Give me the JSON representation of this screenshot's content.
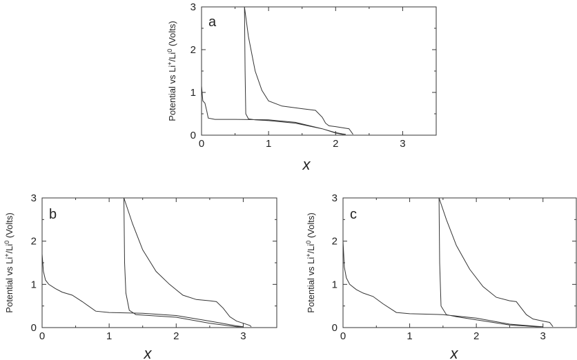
{
  "chart_data": [
    {
      "type": "line",
      "panel_label": "a",
      "xlabel": "x",
      "ylabel": "Potential vs Li+/Li0  (Volts)",
      "xlim": [
        0,
        3.5
      ],
      "ylim": [
        0,
        3
      ],
      "x_ticks": [
        "0",
        "1",
        "2",
        "3"
      ],
      "y_ticks": [
        "0",
        "1",
        "2",
        "3"
      ],
      "grid": false,
      "series": [
        {
          "points": [
            [
              0.0,
              1.15
            ],
            [
              0.02,
              0.8
            ],
            [
              0.05,
              0.75
            ],
            [
              0.08,
              0.55
            ],
            [
              0.1,
              0.4
            ],
            [
              0.2,
              0.37
            ],
            [
              0.5,
              0.37
            ],
            [
              1.0,
              0.36
            ],
            [
              1.4,
              0.3
            ],
            [
              1.8,
              0.15
            ],
            [
              2.0,
              0.06
            ],
            [
              2.1,
              0.03
            ],
            [
              2.15,
              0.02
            ],
            [
              2.1,
              0.02
            ],
            [
              2.0,
              0.05
            ],
            [
              1.8,
              0.15
            ],
            [
              1.4,
              0.28
            ],
            [
              1.0,
              0.34
            ],
            [
              0.8,
              0.36
            ],
            [
              0.7,
              0.38
            ],
            [
              0.66,
              0.5
            ],
            [
              0.65,
              1.5
            ],
            [
              0.64,
              3.0
            ],
            [
              0.7,
              2.3
            ],
            [
              0.8,
              1.5
            ],
            [
              0.9,
              1.05
            ],
            [
              1.0,
              0.8
            ],
            [
              1.2,
              0.68
            ],
            [
              1.5,
              0.62
            ],
            [
              1.7,
              0.58
            ],
            [
              1.8,
              0.42
            ],
            [
              1.85,
              0.28
            ],
            [
              1.9,
              0.22
            ],
            [
              2.0,
              0.2
            ],
            [
              2.2,
              0.15
            ],
            [
              2.26,
              0.02
            ]
          ]
        }
      ]
    },
    {
      "type": "line",
      "panel_label": "b",
      "xlabel": "x",
      "ylabel": "Potential vs Li+/Li0  (Volts)",
      "xlim": [
        0,
        3.5
      ],
      "ylim": [
        0,
        3
      ],
      "x_ticks": [
        "0",
        "1",
        "2",
        "3"
      ],
      "y_ticks": [
        "0",
        "1",
        "2",
        "3"
      ],
      "grid": false,
      "series": [
        {
          "points": [
            [
              0.0,
              1.7
            ],
            [
              0.02,
              1.3
            ],
            [
              0.05,
              1.1
            ],
            [
              0.1,
              1.0
            ],
            [
              0.2,
              0.9
            ],
            [
              0.3,
              0.82
            ],
            [
              0.45,
              0.75
            ],
            [
              0.6,
              0.6
            ],
            [
              0.8,
              0.38
            ],
            [
              1.0,
              0.35
            ],
            [
              1.5,
              0.33
            ],
            [
              2.0,
              0.28
            ],
            [
              2.5,
              0.15
            ],
            [
              2.9,
              0.04
            ],
            [
              3.0,
              0.02
            ],
            [
              2.9,
              0.02
            ],
            [
              2.5,
              0.1
            ],
            [
              2.0,
              0.24
            ],
            [
              1.6,
              0.28
            ],
            [
              1.4,
              0.3
            ],
            [
              1.3,
              0.4
            ],
            [
              1.25,
              0.8
            ],
            [
              1.23,
              1.5
            ],
            [
              1.22,
              3.0
            ],
            [
              1.35,
              2.4
            ],
            [
              1.5,
              1.8
            ],
            [
              1.7,
              1.3
            ],
            [
              1.9,
              1.0
            ],
            [
              2.1,
              0.75
            ],
            [
              2.3,
              0.65
            ],
            [
              2.5,
              0.62
            ],
            [
              2.6,
              0.6
            ],
            [
              2.7,
              0.45
            ],
            [
              2.8,
              0.25
            ],
            [
              2.9,
              0.15
            ],
            [
              3.0,
              0.1
            ],
            [
              3.1,
              0.05
            ],
            [
              3.12,
              0.02
            ]
          ]
        }
      ]
    },
    {
      "type": "line",
      "panel_label": "c",
      "xlabel": "x",
      "ylabel": "Potential vs Li+/Li0  (Volts)",
      "xlim": [
        0,
        3.5
      ],
      "ylim": [
        0,
        3
      ],
      "x_ticks": [
        "0",
        "1",
        "2",
        "3"
      ],
      "y_ticks": [
        "0",
        "1",
        "2",
        "3"
      ],
      "grid": false,
      "series": [
        {
          "points": [
            [
              0.0,
              2.0
            ],
            [
              0.02,
              1.4
            ],
            [
              0.05,
              1.15
            ],
            [
              0.1,
              1.0
            ],
            [
              0.2,
              0.88
            ],
            [
              0.3,
              0.8
            ],
            [
              0.45,
              0.72
            ],
            [
              0.6,
              0.55
            ],
            [
              0.8,
              0.35
            ],
            [
              1.0,
              0.32
            ],
            [
              1.5,
              0.3
            ],
            [
              2.0,
              0.22
            ],
            [
              2.5,
              0.08
            ],
            [
              2.9,
              0.03
            ],
            [
              3.0,
              0.02
            ],
            [
              2.9,
              0.02
            ],
            [
              2.5,
              0.06
            ],
            [
              2.0,
              0.18
            ],
            [
              1.7,
              0.25
            ],
            [
              1.55,
              0.3
            ],
            [
              1.47,
              0.5
            ],
            [
              1.45,
              1.5
            ],
            [
              1.44,
              3.0
            ],
            [
              1.55,
              2.5
            ],
            [
              1.7,
              1.9
            ],
            [
              1.9,
              1.35
            ],
            [
              2.1,
              0.95
            ],
            [
              2.3,
              0.7
            ],
            [
              2.5,
              0.62
            ],
            [
              2.6,
              0.6
            ],
            [
              2.65,
              0.5
            ],
            [
              2.75,
              0.3
            ],
            [
              2.85,
              0.2
            ],
            [
              3.0,
              0.15
            ],
            [
              3.1,
              0.12
            ],
            [
              3.15,
              0.02
            ]
          ]
        }
      ]
    }
  ]
}
